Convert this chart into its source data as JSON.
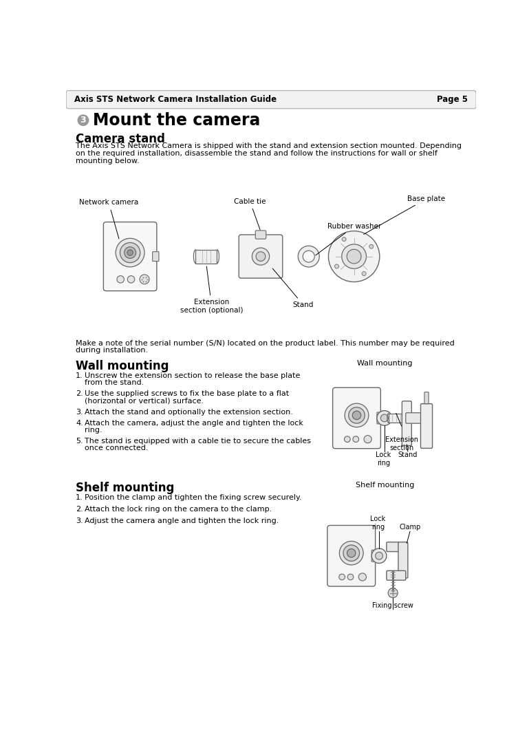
{
  "page_title": "Axis STS Network Camera Installation Guide",
  "page_number": "Page 5",
  "section_number": "3",
  "section_title": "Mount the camera",
  "subsection1": "Camera stand",
  "body_text1_lines": [
    "The Axis STS Network Camera is shipped with the stand and extension section mounted. Depending",
    "on the required installation, disassemble the stand and follow the instructions for wall or shelf",
    "mounting below."
  ],
  "serial_note_lines": [
    "Make a note of the serial number (S/N) located on the product label. This number may be required",
    "during installation."
  ],
  "subsection2": "Wall mounting",
  "wall_steps": [
    [
      "Unscrew the extension section to release the base plate",
      "from the stand."
    ],
    [
      "Use the supplied screws to fix the base plate to a flat",
      "(horizontal or vertical) surface."
    ],
    [
      "Attach the stand and optionally the extension section."
    ],
    [
      "Attach the camera, adjust the angle and tighten the lock",
      "ring."
    ],
    [
      "The stand is equipped with a cable tie to secure the cables",
      "once connected."
    ]
  ],
  "wall_diagram_title": "Wall mounting",
  "wall_diagram_labels": [
    [
      "Lock",
      "ring"
    ],
    [
      "Stand"
    ],
    [
      "Extension",
      "section"
    ]
  ],
  "subsection3": "Shelf mounting",
  "shelf_steps": [
    [
      "Position the clamp and tighten the fixing screw securely."
    ],
    [
      "Attach the lock ring on the camera to the clamp."
    ],
    [
      "Adjust the camera angle and tighten the lock ring."
    ]
  ],
  "shelf_diagram_title": "Shelf mounting",
  "shelf_diagram_labels": [
    [
      "Lock",
      "ring"
    ],
    [
      "Clamp"
    ],
    [
      "Fixing screw"
    ]
  ],
  "bg_color": "#ffffff",
  "header_bg": "#f2f2f2",
  "border_color": "#888888",
  "text_color": "#000000",
  "header_font_size": 8.5,
  "title_font_size": 17,
  "subsection_font_size": 12,
  "body_font_size": 8.0,
  "step_font_size": 8.0,
  "lbl_font_size": 7.5,
  "diagram_lbl_font_size": 7.0
}
